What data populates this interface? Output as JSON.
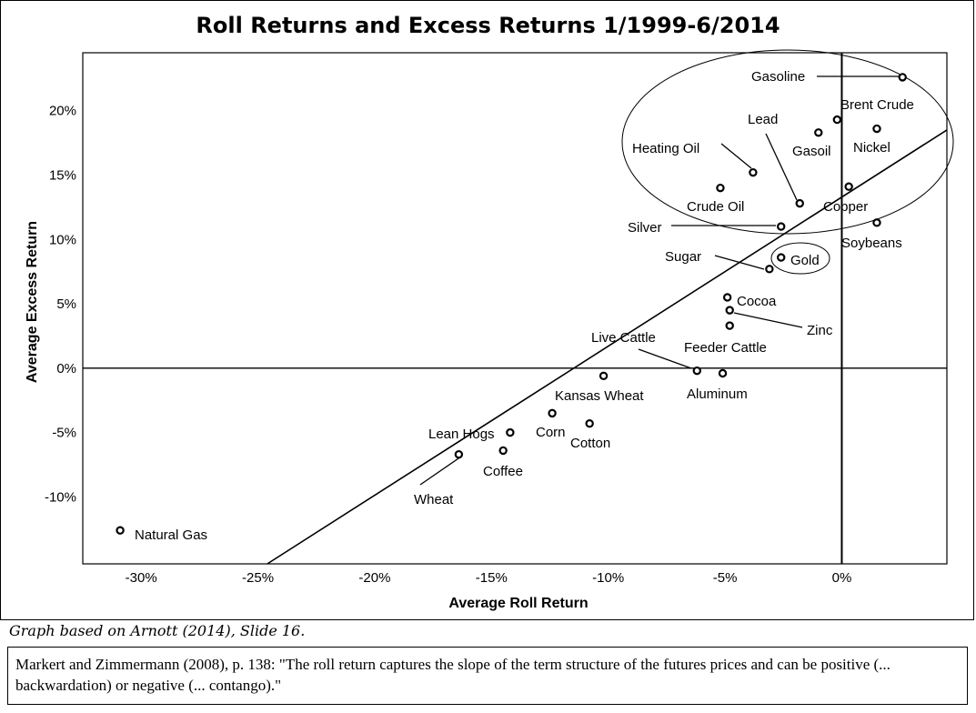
{
  "chart_data": {
    "type": "scatter",
    "title": "Roll Returns and Excess Returns 1/1999-6/2014",
    "xlabel": "Average Roll Return",
    "ylabel": "Average Excess Return",
    "xlim": [
      -32.5,
      4.5
    ],
    "ylim": [
      -15.2,
      24.5
    ],
    "x_ticks": [
      -30,
      -25,
      -20,
      -15,
      -10,
      -5,
      0
    ],
    "x_tick_labels": [
      "-30%",
      "-25%",
      "-20%",
      "-15%",
      "-10%",
      "-5%",
      "0%"
    ],
    "y_ticks": [
      -10,
      -5,
      0,
      5,
      10,
      15,
      20
    ],
    "y_tick_labels": [
      "-10%",
      "-5%",
      "0%",
      "5%",
      "10%",
      "15%",
      "20%"
    ],
    "grid": false,
    "trend_line": {
      "from": [
        -24.6,
        -15.2
      ],
      "to": [
        4.5,
        18.5
      ]
    },
    "points": [
      {
        "name": "Gasoline",
        "x": 2.6,
        "y": 22.6
      },
      {
        "name": "Brent Crude",
        "x": -0.2,
        "y": 19.3
      },
      {
        "name": "Nickel",
        "x": 1.5,
        "y": 18.6
      },
      {
        "name": "Gasoil",
        "x": -1.0,
        "y": 18.3
      },
      {
        "name": "Lead",
        "x": -1.8,
        "y": 12.8
      },
      {
        "name": "Heating Oil",
        "x": -3.8,
        "y": 15.2
      },
      {
        "name": "Crude Oil",
        "x": -5.2,
        "y": 14.0
      },
      {
        "name": "Copper",
        "x": 0.3,
        "y": 14.1
      },
      {
        "name": "Silver",
        "x": -2.6,
        "y": 11.0
      },
      {
        "name": "Soybeans",
        "x": 1.5,
        "y": 11.3
      },
      {
        "name": "Gold",
        "x": -2.6,
        "y": 8.6
      },
      {
        "name": "Sugar",
        "x": -3.1,
        "y": 7.7
      },
      {
        "name": "Cocoa",
        "x": -4.9,
        "y": 5.5
      },
      {
        "name": "Zinc",
        "x": -4.8,
        "y": 4.5
      },
      {
        "name": "Feeder Cattle",
        "x": -4.8,
        "y": 3.3
      },
      {
        "name": "Live Cattle",
        "x": -6.2,
        "y": -0.2
      },
      {
        "name": "Aluminum",
        "x": -5.1,
        "y": -0.4
      },
      {
        "name": "Kansas Wheat",
        "x": -10.2,
        "y": -0.6
      },
      {
        "name": "Corn",
        "x": -12.4,
        "y": -3.5
      },
      {
        "name": "Cotton",
        "x": -10.8,
        "y": -4.3
      },
      {
        "name": "Lean Hogs",
        "x": -14.2,
        "y": -5.0
      },
      {
        "name": "Coffee",
        "x": -14.5,
        "y": -6.4
      },
      {
        "name": "Wheat",
        "x": -16.4,
        "y": -6.7
      },
      {
        "name": "Natural Gas",
        "x": -30.9,
        "y": -12.6
      }
    ]
  },
  "caption": "Graph based on Arnott (2014), Slide 16.",
  "quote": "Markert and Zimmermann (2008), p. 138: \"The roll return captures the slope of the term structure of the futures prices and can be positive (... backwardation) or negative (... contango).\""
}
